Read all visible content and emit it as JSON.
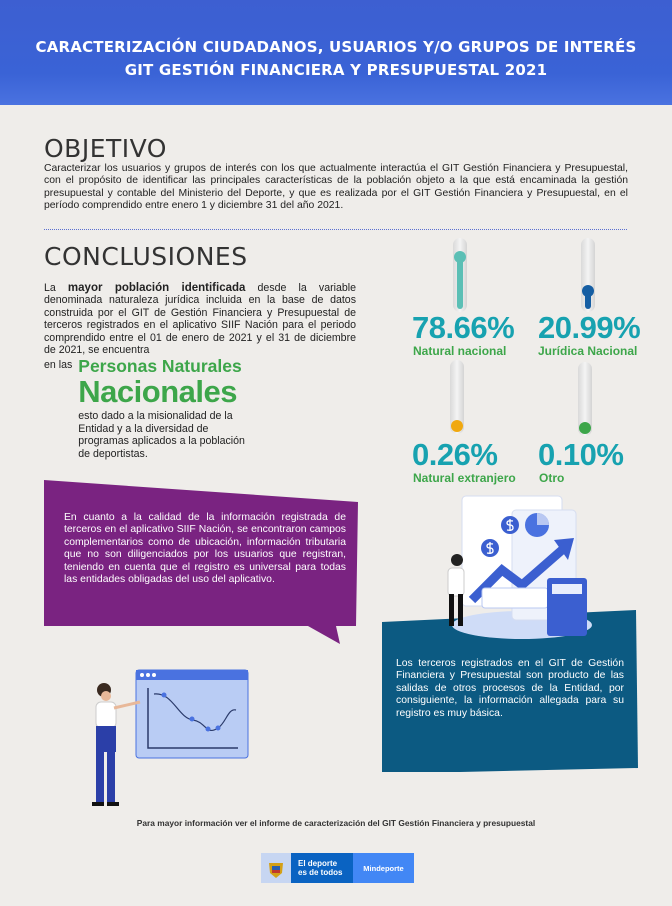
{
  "header": {
    "line1": "CARACTERIZACIÓN CIUDADANOS, USUARIOS Y/O GRUPOS DE INTERÉS",
    "line2": "GIT GESTIÓN FINANCIERA Y PRESUPUESTAL 2021"
  },
  "objetivo": {
    "title": "OBJETIVO",
    "text": "Caracterizar los usuarios y grupos de interés con los que actualmente interactúa el GIT Gestión Financiera y Presupuestal, con el propósito de identificar las principales características de la población objeto a la que está encaminada la gestión presupuestal y contable del Ministerio del Deporte, y que es realizada por el GIT Gestión Financiera y Presupuestal, en el período comprendido entre enero 1 y diciembre 31 del año 2021."
  },
  "conclusiones": {
    "title": "CONCLUSIONES",
    "intro_prefix": "La ",
    "intro_bold": "mayor población identificada",
    "intro_rest": " desde la variable denominada naturaleza jurídica incluida en la base de datos construida por el GIT de Gestión Financiera y Presupuestal de terceros registrados en el aplicativo SIIF Nación para el periodo comprendido entre el 01 de enero de 2021 y el 31 de diciembre de 2021, se encuentra",
    "en_las": "en las",
    "highlight1": "Personas Naturales",
    "highlight2": "Nacionales",
    "after": "esto dado a la misionalidad de la Entidad y a la diversidad de programas aplicados a la población de deportistas."
  },
  "stats": [
    {
      "value": "78.66%",
      "label": "Natural nacional",
      "percent": 78.66,
      "color": "#5bbfb5"
    },
    {
      "value": "20.99%",
      "label": "Jurídica Nacional",
      "percent": 20.99,
      "color": "#155ea3"
    },
    {
      "value": "0.26%",
      "label": "Natural extranjero",
      "percent": 0.26,
      "color": "#f0a80f"
    },
    {
      "value": "0.10%",
      "label": "Otro",
      "percent": 0.1,
      "color": "#3da64a"
    }
  ],
  "purple_box": {
    "text": "En cuanto a la calidad de la información registrada de terceros en el aplicativo SIIF Nación, se encontraron campos complementarios como de ubicación, información tributaria que no son diligenciados por los usuarios que registran, teniendo en cuenta que el registro es universal para todas las entidades obligadas del uso del aplicativo.",
    "color": "#7a2381"
  },
  "blue_box": {
    "text": "Los terceros registrados en el GIT de Gestión Financiera y Presupuestal son producto de las salidas de otros procesos de la Entidad, por consiguiente, la información allegada para su registro es muy básica.",
    "color": "#0c5a82"
  },
  "footer": {
    "note": "Para mayor información ver el informe de caracterización del GIT Gestión Financiera y presupuestal",
    "logo_line1": "El deporte",
    "logo_line2": "es de todos",
    "logo_brand": "Mindeporte"
  }
}
